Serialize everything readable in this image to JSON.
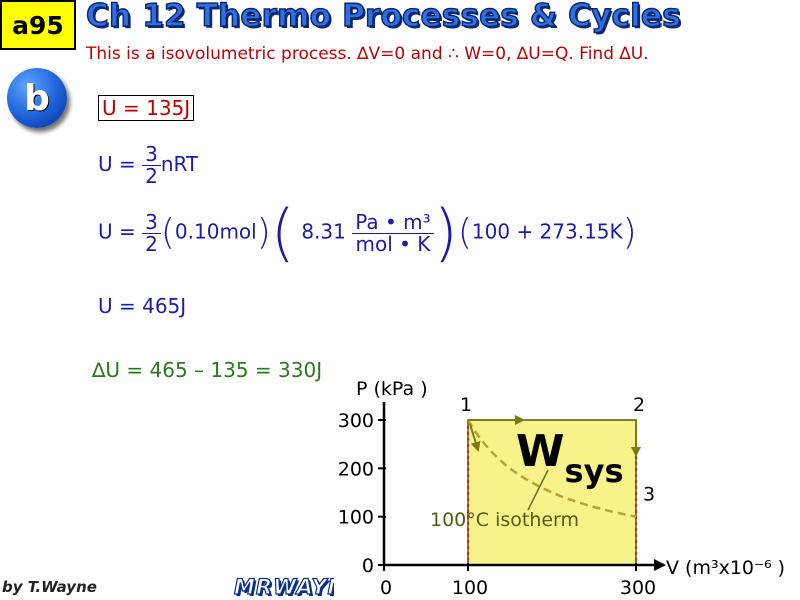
{
  "slide": {
    "tag": "a95",
    "title": "Ch 12 Thermo Processes & Cycles",
    "subtitle": "This is a isovolumetric process. ∆V=0 and ∴ W=0, ∆U=Q. Find ∆U.",
    "part_badge": "b",
    "footer": "by T.Wayne",
    "logo": "MRWAYNE"
  },
  "equations": {
    "eq1": "U = 135J",
    "eq2_lhs": "U =",
    "eq2_num": "3",
    "eq2_den": "2",
    "eq2_rest": "nRT",
    "eq3_lhs": "U =",
    "eq3_num": "3",
    "eq3_den": "2",
    "eq3_mol": "0.10mol",
    "eq3_R": "8.31",
    "eq3_unit_num": "Pa • m³",
    "eq3_unit_den": "mol • K",
    "eq3_temp": "100 + 273.15K",
    "eq4": "U = 465J",
    "eq5": "∆U = 465 – 135 = 330J"
  },
  "graph": {
    "y_label": "P (kPa )",
    "x_label": "V (m³x10⁻⁶ )",
    "y_ticks": [
      "300",
      "200",
      "100",
      "0"
    ],
    "x_ticks": [
      "0",
      "100",
      "300"
    ],
    "y_tick_values": [
      300,
      200,
      100,
      0
    ],
    "x_tick_values": [
      0,
      100,
      300
    ],
    "points": [
      {
        "label": "1",
        "V": 100,
        "P": 300
      },
      {
        "label": "2",
        "V": 300,
        "P": 300
      },
      {
        "label": "3",
        "V": 300,
        "P": 160
      }
    ],
    "work_label": "Wsys",
    "isotherm_label": "100°C isotherm",
    "colors": {
      "region_fill": "#f7f38a",
      "region_stroke": "#5a5a00",
      "isotherm_dash": "#b5a233",
      "dotted_red": "#e02020",
      "arrow": "#7a7a10"
    }
  }
}
